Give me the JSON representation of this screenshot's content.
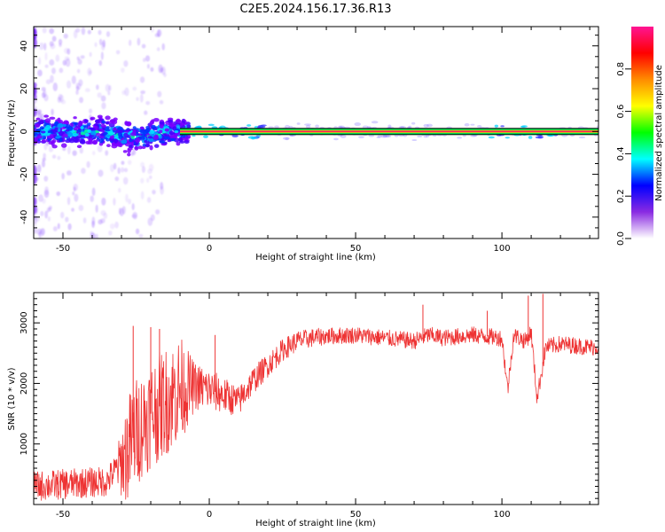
{
  "title": "C2E5.2024.156.17.36.R13",
  "colors": {
    "snr_line": "#ee3333",
    "track_core": "#ff2060",
    "track_halo": "#00dd55",
    "scatter": "#7a3cff"
  },
  "chart_data": [
    {
      "type": "heatmap",
      "name": "spectrogram",
      "xlabel": "Height of straight line (km)",
      "ylabel": "Frequency (Hz)",
      "xlim": [
        -60,
        133
      ],
      "ylim": [
        -50,
        49
      ],
      "xticks": [
        -50,
        0,
        50,
        100
      ],
      "yticks": [
        -40,
        -20,
        0,
        20,
        40
      ],
      "colorbar": {
        "label": "Normalized spectral amplitude",
        "range": [
          0,
          1
        ],
        "ticks": [
          "0.0",
          "0.2",
          "0.4",
          "0.6",
          "0.8"
        ],
        "colormap": [
          "#ffffff",
          "#8a2be2",
          "#0000ff",
          "#00ffff",
          "#00ff00",
          "#ffff00",
          "#ff8c00",
          "#ff0000",
          "#ff1493"
        ]
      },
      "track": {
        "x_start": -10,
        "x_end": 133,
        "frequency": 0,
        "amplitude": 1.0
      },
      "noisy_segment": {
        "x_start": -60,
        "x_end": -7,
        "frequency_center": 0,
        "frequency_spread": 4
      },
      "grid": false
    },
    {
      "type": "line",
      "name": "snr",
      "xlabel": "Height of straight line (km)",
      "ylabel": "SNR (10 * v/v)",
      "xlim": [
        -60,
        133
      ],
      "ylim": [
        0,
        3500
      ],
      "xticks": [
        -50,
        0,
        50,
        100
      ],
      "yticks": [
        1000,
        2000,
        3000
      ],
      "grid": false,
      "trend_points": {
        "x": [
          -60,
          -45,
          -35,
          -30,
          -25,
          -20,
          -15,
          -10,
          -5,
          0,
          5,
          10,
          15,
          20,
          25,
          30,
          35,
          40,
          50,
          60,
          70,
          75,
          80,
          90,
          100,
          102,
          104,
          108,
          110,
          112,
          115,
          120,
          130,
          133
        ],
        "y": [
          300,
          350,
          380,
          700,
          1200,
          1500,
          1700,
          1900,
          1950,
          1900,
          1800,
          1700,
          2050,
          2300,
          2550,
          2700,
          2750,
          2780,
          2800,
          2750,
          2700,
          2800,
          2750,
          2800,
          2750,
          1900,
          2800,
          2700,
          2850,
          1750,
          2600,
          2650,
          2600,
          2600
        ]
      },
      "noise_amplitude": {
        "x": [
          -60,
          -32,
          -28,
          -10,
          -5,
          10,
          20,
          40,
          133
        ],
        "y": [
          250,
          250,
          900,
          900,
          400,
          250,
          200,
          140,
          140
        ]
      },
      "spikes": [
        {
          "x": -26,
          "y": 2950
        },
        {
          "x": -20,
          "y": 2930
        },
        {
          "x": -17,
          "y": 2900
        },
        {
          "x": 2,
          "y": 2800
        },
        {
          "x": 73,
          "y": 3300
        },
        {
          "x": 95,
          "y": 3200
        },
        {
          "x": 109,
          "y": 3450
        },
        {
          "x": 114,
          "y": 3480
        }
      ]
    }
  ]
}
